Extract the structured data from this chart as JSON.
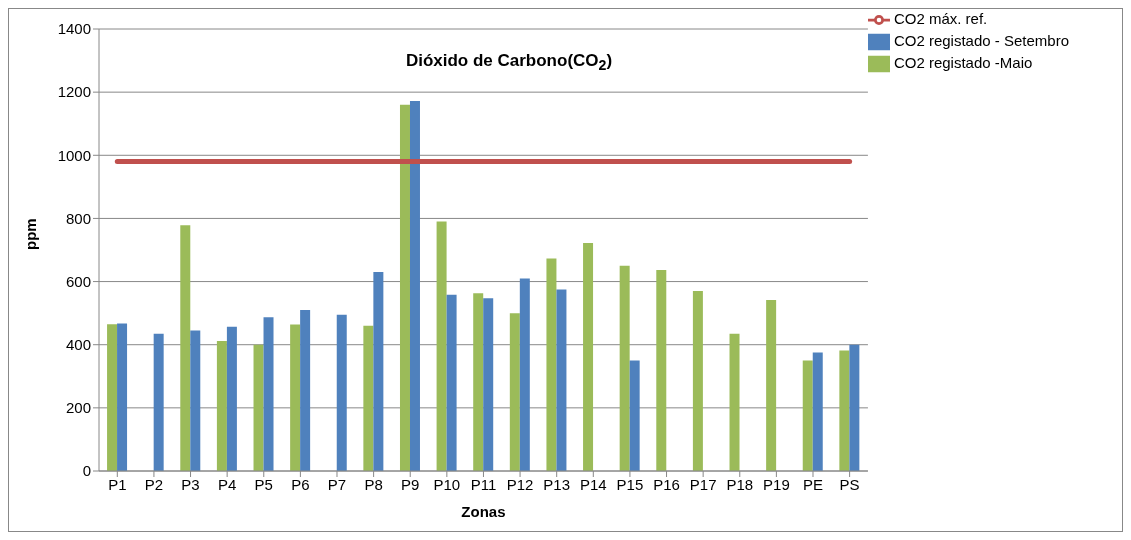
{
  "chart_data": {
    "type": "bar",
    "title": "Dióxido de Carbono(CO$_{2}$)",
    "xlabel": "Zonas",
    "ylabel": "ppm",
    "categories": [
      "P1",
      "P2",
      "P3",
      "P4",
      "P5",
      "P6",
      "P7",
      "P8",
      "P9",
      "P10",
      "P11",
      "P12",
      "P13",
      "P14",
      "P15",
      "P16",
      "P17",
      "P18",
      "P19",
      "PE",
      "PS"
    ],
    "series": [
      {
        "name": "CO2 registado -Maio",
        "color": "#9bbb59",
        "values": [
          465,
          null,
          778,
          412,
          400,
          464,
          null,
          460,
          1160,
          790,
          563,
          500,
          673,
          722,
          650,
          637,
          570,
          435,
          542,
          350,
          382
        ]
      },
      {
        "name": "CO2 registado - Setembro",
        "color": "#4f81bd",
        "values": [
          467,
          435,
          445,
          457,
          487,
          510,
          495,
          630,
          1172,
          558,
          547,
          610,
          575,
          null,
          350,
          null,
          null,
          null,
          null,
          375,
          400
        ]
      },
      {
        "name": "CO2 máx. ref.",
        "type": "line",
        "color": "#c0504d",
        "values": [
          980,
          980,
          980,
          980,
          980,
          980,
          980,
          980,
          980,
          980,
          980,
          980,
          980,
          980,
          980,
          980,
          980,
          980,
          980,
          980,
          980
        ]
      }
    ],
    "ylim": [
      0,
      1400
    ],
    "yticks": [
      0,
      200,
      400,
      600,
      800,
      1000,
      1200,
      1400
    ],
    "grid": "y",
    "legend": "top right",
    "marker": "none",
    "line_style": "solid"
  }
}
